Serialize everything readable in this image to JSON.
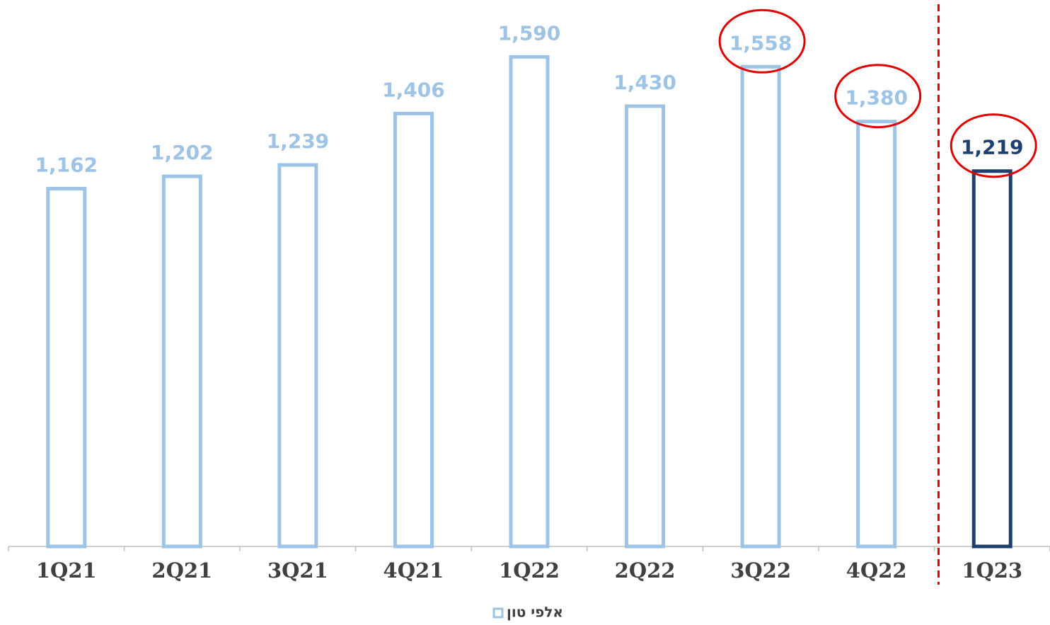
{
  "chart_data": {
    "type": "bar",
    "categories": [
      "1Q21",
      "2Q21",
      "3Q21",
      "4Q21",
      "1Q22",
      "2Q22",
      "3Q22",
      "4Q22",
      "1Q23"
    ],
    "series": [
      {
        "name": "אלפי טון",
        "color": "#9dc3e6",
        "values": [
          1162,
          1202,
          1239,
          1406,
          1590,
          1430,
          1558,
          1380,
          1219
        ],
        "value_labels": [
          "1,162",
          "1,202",
          "1,239",
          "1,406",
          "1,590",
          "1,430",
          "1,558",
          "1,380",
          "1,219"
        ],
        "colors": [
          "#9dc3e6",
          "#9dc3e6",
          "#9dc3e6",
          "#9dc3e6",
          "#9dc3e6",
          "#9dc3e6",
          "#9dc3e6",
          "#9dc3e6",
          "#1f3f6e"
        ]
      }
    ],
    "ylim": [
      0,
      1600
    ],
    "highlighted_indices": [
      6,
      7,
      8
    ],
    "highlight_color": "#e00000",
    "divider_after_index": 7
  }
}
